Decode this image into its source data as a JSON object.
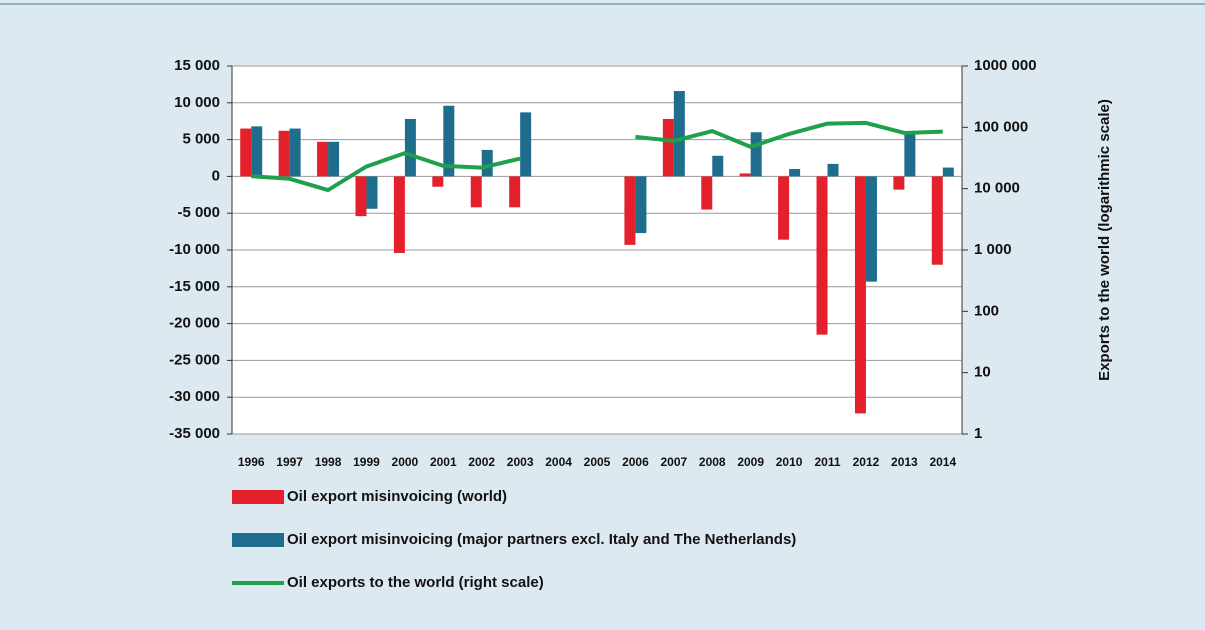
{
  "chart_data": {
    "type": "bar",
    "y2label": "Exports to the world (logarithmic scale)",
    "categories": [
      "1996",
      "1997",
      "1998",
      "1999",
      "2000",
      "2001",
      "2002",
      "2003",
      "2004",
      "2005",
      "2006",
      "2007",
      "2008",
      "2009",
      "2010",
      "2011",
      "2012",
      "2013",
      "2014"
    ],
    "series": [
      {
        "name": "Oil export misinvoicing (world)",
        "color": "#e3202b",
        "type": "bar",
        "values": [
          6500,
          6200,
          4700,
          -5400,
          -10400,
          -1400,
          -4200,
          -4200,
          null,
          null,
          -9300,
          7800,
          -4500,
          400,
          -8600,
          -21500,
          -32200,
          -1800,
          -12000
        ]
      },
      {
        "name": "Oil export misinvoicing (major partners excl. Italy and The Netherlands)",
        "color": "#1f6d8c",
        "type": "bar",
        "values": [
          6800,
          6500,
          4700,
          -4400,
          7800,
          9600,
          3600,
          8700,
          null,
          null,
          -7700,
          11600,
          2800,
          6000,
          1000,
          1700,
          -14300,
          6000,
          1200
        ]
      },
      {
        "name": "Oil exports to the world (right scale)",
        "color": "#1fa04a",
        "type": "line",
        "axis": "y2",
        "values": [
          16000,
          14500,
          9500,
          23000,
          38000,
          23500,
          22000,
          31000,
          null,
          null,
          70000,
          60000,
          87000,
          48000,
          78000,
          115000,
          118000,
          81000,
          85000
        ]
      }
    ],
    "ylim": [
      -35000,
      15000
    ],
    "yticks": [
      {
        "value": -35000,
        "label": "-35 000"
      },
      {
        "value": -30000,
        "label": "-30 000"
      },
      {
        "value": -25000,
        "label": "-25 000"
      },
      {
        "value": -20000,
        "label": "-20 000"
      },
      {
        "value": -15000,
        "label": "-15 000"
      },
      {
        "value": -10000,
        "label": "-10 000"
      },
      {
        "value": -5000,
        "label": "-5 000"
      },
      0,
      {
        "value": 5000,
        "label": "5 000"
      },
      {
        "value": 10000,
        "label": "10 000"
      },
      {
        "value": 15000,
        "label": "15 000"
      }
    ],
    "y2lim": [
      1,
      1000000
    ],
    "y2scale": "log",
    "y2ticks": [
      1,
      10,
      100,
      {
        "value": 1000,
        "label": "1 000"
      },
      {
        "value": 10000,
        "label": "10 000"
      },
      {
        "value": 100000,
        "label": "100 000"
      },
      {
        "value": 1000000,
        "label": "1000 000"
      }
    ],
    "grid": true
  }
}
